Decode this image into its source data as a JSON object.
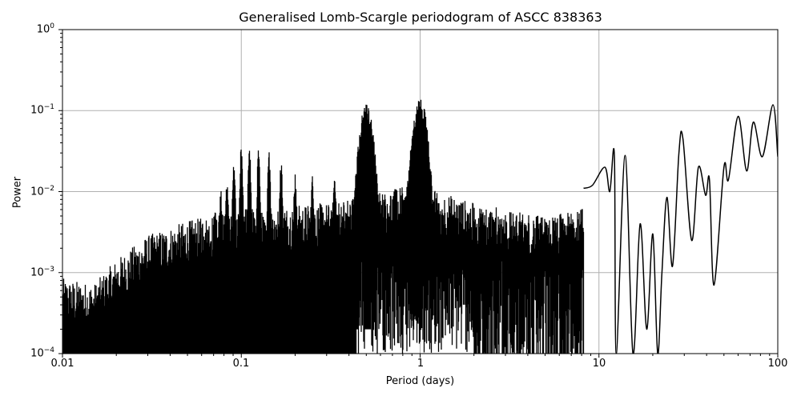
{
  "chart_data": {
    "type": "line",
    "title": "Generalised Lomb-Scargle periodogram of ASCC 838363",
    "xlabel": "Period (days)",
    "ylabel": "Power",
    "xscale": "log",
    "yscale": "log",
    "xlim": [
      0.01,
      100
    ],
    "ylim": [
      0.0001,
      1
    ],
    "grid": true,
    "legend": null,
    "x_ticks": [
      "0.01",
      "0.1",
      "1",
      "10",
      "100"
    ],
    "y_ticks": [
      {
        "base": "10",
        "exp": "0"
      },
      {
        "base": "10",
        "exp": "−1"
      },
      {
        "base": "10",
        "exp": "−2"
      },
      {
        "base": "10",
        "exp": "−3"
      },
      {
        "base": "10",
        "exp": "−4"
      }
    ],
    "line_color": "#000000",
    "grid_color": "#b0b0b0",
    "noise_envelope": [
      {
        "period": 0.01,
        "power": 0.00035
      },
      {
        "period": 0.015,
        "power": 0.0003
      },
      {
        "period": 0.02,
        "power": 0.0006
      },
      {
        "period": 0.03,
        "power": 0.0012
      },
      {
        "period": 0.05,
        "power": 0.0018
      },
      {
        "period": 0.1,
        "power": 0.0025
      },
      {
        "period": 0.3,
        "power": 0.003
      },
      {
        "period": 0.5,
        "power": 0.004
      },
      {
        "period": 1.0,
        "power": 0.005
      },
      {
        "period": 2.0,
        "power": 0.003
      },
      {
        "period": 5.0,
        "power": 0.002
      },
      {
        "period": 10.0,
        "power": 0.003
      }
    ],
    "alias_peaks": [
      {
        "period": 0.0625,
        "power": 0.004
      },
      {
        "period": 0.0714,
        "power": 0.007
      },
      {
        "period": 0.0769,
        "power": 0.011
      },
      {
        "period": 0.0833,
        "power": 0.016
      },
      {
        "period": 0.0909,
        "power": 0.027
      },
      {
        "period": 0.1,
        "power": 0.038
      },
      {
        "period": 0.111,
        "power": 0.036
      },
      {
        "period": 0.125,
        "power": 0.037
      },
      {
        "period": 0.143,
        "power": 0.032
      },
      {
        "period": 0.167,
        "power": 0.025
      },
      {
        "period": 0.2,
        "power": 0.017
      },
      {
        "period": 0.25,
        "power": 0.016
      },
      {
        "period": 0.333,
        "power": 0.017
      },
      {
        "period": 0.5,
        "power": 0.12
      },
      {
        "period": 1.0,
        "power": 0.145
      },
      {
        "period": 0.97,
        "power": 0.08
      }
    ],
    "long_period_curve": [
      {
        "period": 8.2,
        "power": 0.011
      },
      {
        "period": 9.2,
        "power": 0.012
      },
      {
        "period": 10.8,
        "power": 0.02
      },
      {
        "period": 11.5,
        "power": 0.01
      },
      {
        "period": 12.2,
        "power": 0.028
      },
      {
        "period": 12.5,
        "power": 0.0001
      },
      {
        "period": 14.0,
        "power": 0.028
      },
      {
        "period": 15.5,
        "power": 0.0001
      },
      {
        "period": 17.0,
        "power": 0.004
      },
      {
        "period": 18.5,
        "power": 0.0002
      },
      {
        "period": 20.0,
        "power": 0.003
      },
      {
        "period": 21.3,
        "power": 0.0001
      },
      {
        "period": 22.5,
        "power": 0.001
      },
      {
        "period": 24.0,
        "power": 0.0085
      },
      {
        "period": 25.8,
        "power": 0.0012
      },
      {
        "period": 28.0,
        "power": 0.03
      },
      {
        "period": 29.5,
        "power": 0.045
      },
      {
        "period": 33.0,
        "power": 0.0025
      },
      {
        "period": 36.0,
        "power": 0.02
      },
      {
        "period": 39.5,
        "power": 0.009
      },
      {
        "period": 41.5,
        "power": 0.014
      },
      {
        "period": 44.0,
        "power": 0.0007
      },
      {
        "period": 50.0,
        "power": 0.02
      },
      {
        "period": 53.0,
        "power": 0.014
      },
      {
        "period": 60.0,
        "power": 0.085
      },
      {
        "period": 67.0,
        "power": 0.018
      },
      {
        "period": 73.0,
        "power": 0.072
      },
      {
        "period": 82.0,
        "power": 0.027
      },
      {
        "period": 94.0,
        "power": 0.118
      },
      {
        "period": 100.0,
        "power": 0.027
      }
    ]
  }
}
